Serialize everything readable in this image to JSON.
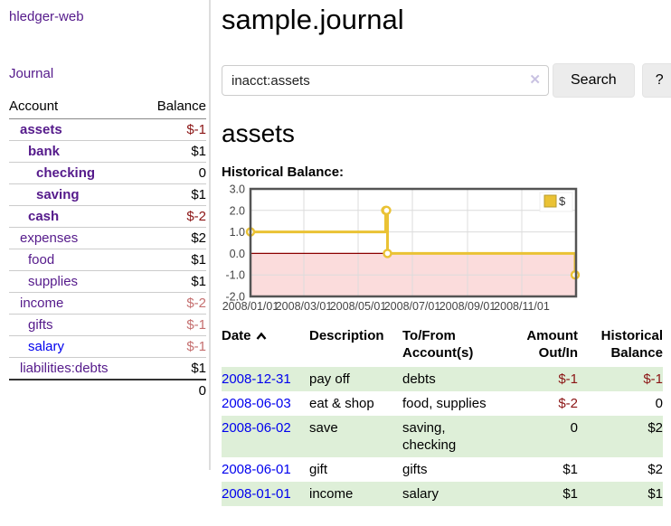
{
  "brand": "hledger-web",
  "nav": {
    "journal": "Journal"
  },
  "sidebar": {
    "header": {
      "account": "Account",
      "balance": "Balance"
    },
    "accounts": [
      {
        "name": "assets",
        "balance": "$-1"
      },
      {
        "name": "bank",
        "balance": "$1"
      },
      {
        "name": "checking",
        "balance": "0"
      },
      {
        "name": "saving",
        "balance": "$1"
      },
      {
        "name": "cash",
        "balance": "$-2"
      },
      {
        "name": "expenses",
        "balance": "$2"
      },
      {
        "name": "food",
        "balance": "$1"
      },
      {
        "name": "supplies",
        "balance": "$1"
      },
      {
        "name": "income",
        "balance": "$-2"
      },
      {
        "name": "gifts",
        "balance": "$-1"
      },
      {
        "name": "salary",
        "balance": "$-1"
      },
      {
        "name": "liabilities:debts",
        "balance": "$1"
      }
    ],
    "total": "0"
  },
  "main": {
    "title": "sample.journal",
    "search": {
      "value": "inacct:assets",
      "clear": "✕",
      "button": "Search",
      "help": "?"
    },
    "heading": "assets",
    "chart_title": "Historical Balance:"
  },
  "chart_data": {
    "type": "line",
    "step": true,
    "title": "Historical Balance:",
    "series": [
      {
        "name": "$",
        "points": [
          [
            "2008-01-01",
            1
          ],
          [
            "2008-06-01",
            2
          ],
          [
            "2008-06-02",
            2
          ],
          [
            "2008-06-03",
            0
          ],
          [
            "2008-12-31",
            -1
          ]
        ]
      }
    ],
    "xrange": [
      "2008-01-01",
      "2009-01-01"
    ],
    "ylim": [
      -2,
      3
    ],
    "yticks": [
      "3.0",
      "2.0",
      "1.0",
      "0.0",
      "-1.0",
      "-2.0"
    ],
    "xticks": [
      "2008/01/01",
      "2008/03/01",
      "2008/05/01",
      "2008/07/01",
      "2008/09/01",
      "2008/11/01"
    ],
    "legend": {
      "label": "$",
      "position": "top-right"
    },
    "grid": true,
    "colors": {
      "series": "#EAC234",
      "marker_fill": "#FFFFFF",
      "negative_fill": "#FBDCDC",
      "zero_line": "#8B0000",
      "border": "#545454",
      "gridline": "#DCDCDC",
      "tick_text": "#444444"
    }
  },
  "register": {
    "headers": {
      "date": "Date",
      "description": "Description",
      "tofrom": "To/From Account(s)",
      "amount": "Amount Out/In",
      "balance": "Historical Balance"
    },
    "rows": [
      {
        "date": "2008-12-31",
        "description": "pay off",
        "accounts": "debts",
        "amount": "$-1",
        "balance": "$-1"
      },
      {
        "date": "2008-06-03",
        "description": "eat & shop",
        "accounts": "food, supplies",
        "amount": "$-2",
        "balance": "0"
      },
      {
        "date": "2008-06-02",
        "description": "save",
        "accounts": "saving, checking",
        "amount": "0",
        "balance": "$2"
      },
      {
        "date": "2008-06-01",
        "description": "gift",
        "accounts": "gifts",
        "amount": "$1",
        "balance": "$2"
      },
      {
        "date": "2008-01-01",
        "description": "income",
        "accounts": "salary",
        "amount": "$1",
        "balance": "$1"
      }
    ]
  }
}
